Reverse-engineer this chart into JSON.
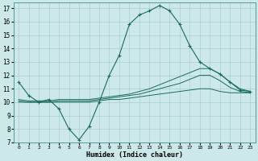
{
  "xlabel": "Humidex (Indice chaleur)",
  "bg_color": "#cce8e8",
  "grid_color": "#aacfcf",
  "line_color": "#1a6b5a",
  "xlim": [
    -0.5,
    23.5
  ],
  "ylim": [
    7,
    17.4
  ],
  "xticks": [
    0,
    1,
    2,
    3,
    4,
    5,
    6,
    7,
    8,
    9,
    10,
    11,
    12,
    13,
    14,
    15,
    16,
    17,
    18,
    19,
    20,
    21,
    22,
    23
  ],
  "yticks": [
    7,
    8,
    9,
    10,
    11,
    12,
    13,
    14,
    15,
    16,
    17
  ],
  "series1_x": [
    0,
    1,
    2,
    3,
    4,
    5,
    6,
    7,
    8,
    9,
    10,
    11,
    12,
    13,
    14,
    15,
    16,
    17,
    18,
    19,
    20,
    21,
    22,
    23
  ],
  "series1_y": [
    11.5,
    10.5,
    10.0,
    10.2,
    9.5,
    8.0,
    7.2,
    8.2,
    10.0,
    12.0,
    13.5,
    15.8,
    16.5,
    16.8,
    17.2,
    16.8,
    15.8,
    14.2,
    13.0,
    12.5,
    12.1,
    11.5,
    10.9,
    10.8
  ],
  "series2_x": [
    0,
    1,
    2,
    3,
    4,
    5,
    6,
    7,
    8,
    9,
    10,
    11,
    12,
    13,
    14,
    15,
    16,
    17,
    18,
    19,
    20,
    21,
    22,
    23
  ],
  "series2_y": [
    10.2,
    10.1,
    10.1,
    10.1,
    10.2,
    10.2,
    10.2,
    10.2,
    10.3,
    10.4,
    10.5,
    10.6,
    10.8,
    11.0,
    11.3,
    11.6,
    11.9,
    12.2,
    12.5,
    12.5,
    12.1,
    11.5,
    11.0,
    10.8
  ],
  "series3_x": [
    0,
    1,
    2,
    3,
    4,
    5,
    6,
    7,
    8,
    9,
    10,
    11,
    12,
    13,
    14,
    15,
    16,
    17,
    18,
    19,
    20,
    21,
    22,
    23
  ],
  "series3_y": [
    10.1,
    10.0,
    10.0,
    10.0,
    10.1,
    10.1,
    10.1,
    10.1,
    10.2,
    10.3,
    10.4,
    10.5,
    10.6,
    10.8,
    11.0,
    11.2,
    11.4,
    11.7,
    12.0,
    12.0,
    11.6,
    11.1,
    10.8,
    10.7
  ],
  "series4_x": [
    0,
    1,
    2,
    3,
    4,
    5,
    6,
    7,
    8,
    9,
    10,
    11,
    12,
    13,
    14,
    15,
    16,
    17,
    18,
    19,
    20,
    21,
    22,
    23
  ],
  "series4_y": [
    10.0,
    10.0,
    10.0,
    10.0,
    10.0,
    10.0,
    10.0,
    10.0,
    10.1,
    10.2,
    10.2,
    10.3,
    10.4,
    10.5,
    10.6,
    10.7,
    10.8,
    10.9,
    11.0,
    11.0,
    10.8,
    10.7,
    10.7,
    10.7
  ]
}
